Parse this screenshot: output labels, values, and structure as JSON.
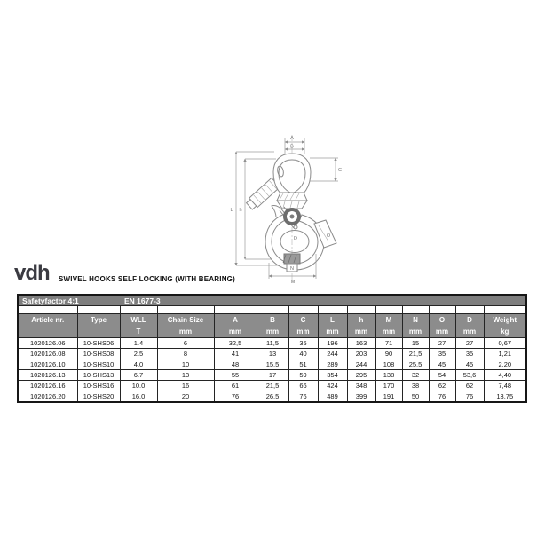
{
  "brand": {
    "logo_text": "vdh",
    "title": "SWIVEL HOOKS SELF LOCKING (WITH BEARING)"
  },
  "info_bar": {
    "safety_factor": "Safetyfactor 4:1",
    "standard": "EN 1677-3"
  },
  "diagram": {
    "dim_labels": {
      "A": "A",
      "B": "B",
      "C": "C",
      "L": "L",
      "h": "h",
      "D": "D",
      "O": "O",
      "N": "N",
      "M": "M"
    }
  },
  "table": {
    "columns": [
      {
        "label": "Article nr.",
        "unit": ""
      },
      {
        "label": "Type",
        "unit": ""
      },
      {
        "label": "WLL",
        "unit": "T"
      },
      {
        "label": "Chain Size",
        "unit": "mm"
      },
      {
        "label": "A",
        "unit": "mm"
      },
      {
        "label": "B",
        "unit": "mm"
      },
      {
        "label": "C",
        "unit": "mm"
      },
      {
        "label": "L",
        "unit": "mm"
      },
      {
        "label": "h",
        "unit": "mm"
      },
      {
        "label": "M",
        "unit": "mm"
      },
      {
        "label": "N",
        "unit": "mm"
      },
      {
        "label": "O",
        "unit": "mm"
      },
      {
        "label": "D",
        "unit": "mm"
      },
      {
        "label": "Weight",
        "unit": "kg"
      }
    ],
    "rows": [
      [
        "1020126.06",
        "10-SHS06",
        "1.4",
        "6",
        "32,5",
        "11,5",
        "35",
        "196",
        "163",
        "71",
        "15",
        "27",
        "27",
        "0,67"
      ],
      [
        "1020126.08",
        "10-SHS08",
        "2.5",
        "8",
        "41",
        "13",
        "40",
        "244",
        "203",
        "90",
        "21,5",
        "35",
        "35",
        "1,21"
      ],
      [
        "1020126.10",
        "10-SHS10",
        "4.0",
        "10",
        "48",
        "15,5",
        "51",
        "289",
        "244",
        "108",
        "25,5",
        "45",
        "45",
        "2,20"
      ],
      [
        "1020126.13",
        "10-SHS13",
        "6.7",
        "13",
        "55",
        "17",
        "59",
        "354",
        "295",
        "138",
        "32",
        "54",
        "53,6",
        "4,40"
      ],
      [
        "1020126.16",
        "10-SHS16",
        "10.0",
        "16",
        "61",
        "21,5",
        "66",
        "424",
        "348",
        "170",
        "38",
        "62",
        "62",
        "7,48"
      ],
      [
        "1020126.20",
        "10-SHS20",
        "16.0",
        "20",
        "76",
        "26,5",
        "76",
        "489",
        "399",
        "191",
        "50",
        "76",
        "76",
        "13,75"
      ]
    ]
  },
  "colors": {
    "info_bar_gray": "#7e7e7e",
    "header_gray": "#8c8c8c",
    "header_text": "#ffffff",
    "border": "#242424",
    "drawing_line": "#8a8a8a"
  }
}
